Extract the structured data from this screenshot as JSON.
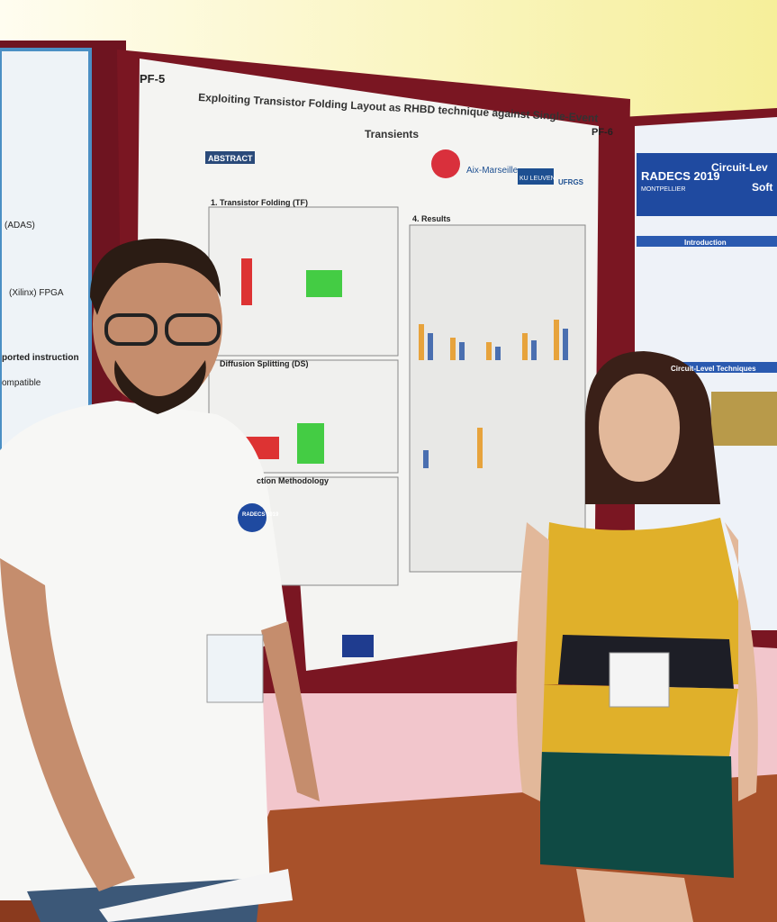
{
  "left_poster": {
    "lines": [
      "(ADAS)",
      "(Xilinx)  FPGA",
      "ported  instruction",
      "ompatible"
    ]
  },
  "main_poster": {
    "id": "PF-5",
    "title": "Exploiting Transistor Folding Layout as RHBD technique against Single-Event",
    "title_line2": "Transients",
    "logos": [
      "Aix-Marseille",
      "KU LEUVEN",
      "UFRGS"
    ],
    "sections": [
      "ABSTRACT",
      "1. Transistor Folding (TF)",
      "Diffusion Splitting (DS)",
      "4. Results",
      "ction Methodology"
    ]
  },
  "right_poster": {
    "id": "PF-6",
    "conference": "RADECS 2019",
    "city": "MONTPELLIER",
    "title": "Circuit-Lev",
    "title_line2": "Soft",
    "sections": [
      "Introduction",
      "Circuit-Level Techniques"
    ]
  },
  "badge": "RADECS 2019"
}
